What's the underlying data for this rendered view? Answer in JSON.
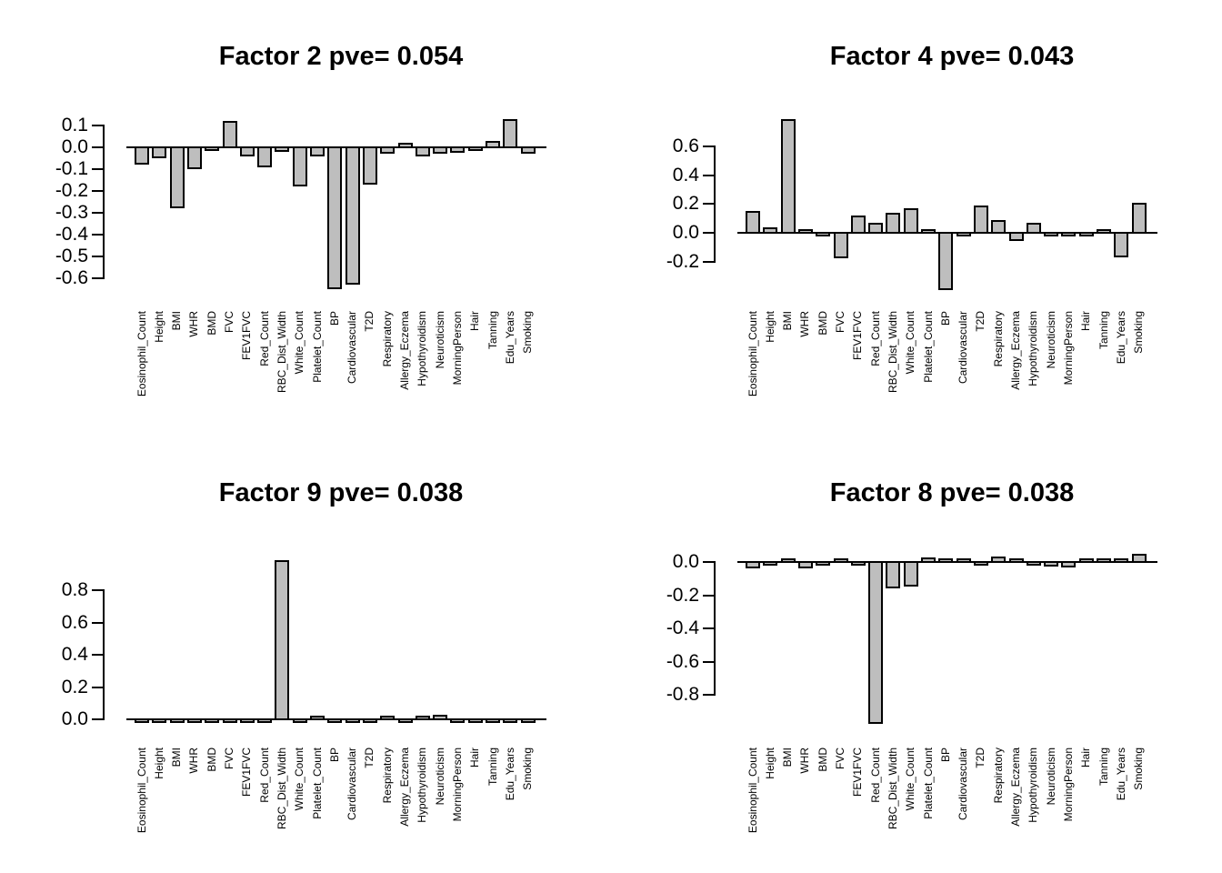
{
  "figure": {
    "background": "#ffffff",
    "bar_fill": "#bebebe",
    "bar_border": "#000000",
    "text_color": "#000000"
  },
  "chart_data": [
    {
      "type": "bar",
      "position": "top-left",
      "title": "Factor 2 pve= 0.054",
      "factor": "Factor 2",
      "pve": 0.054,
      "categories": [
        "Eosinophil_Count",
        "Height",
        "BMI",
        "WHR",
        "BMD",
        "FVC",
        "FEV1FVC",
        "Red_Count",
        "RBC_Dist_Width",
        "White_Count",
        "Platelet_Count",
        "BP",
        "Cardiovascular",
        "T2D",
        "Respiratory",
        "Allergy_Eczema",
        "Hypothyroidism",
        "Neuroticism",
        "MorningPerson",
        "Hair",
        "Tanning",
        "Edu_Years",
        "Smoking"
      ],
      "values": [
        -0.08,
        -0.05,
        -0.28,
        -0.1,
        -0.005,
        0.12,
        -0.04,
        -0.09,
        -0.02,
        -0.18,
        -0.04,
        -0.65,
        -0.63,
        -0.17,
        -0.03,
        0.02,
        -0.04,
        -0.03,
        -0.025,
        -0.005,
        0.03,
        0.13,
        -0.03
      ],
      "ytick_values": [
        0.1,
        0.0,
        -0.1,
        -0.2,
        -0.3,
        -0.4,
        -0.5,
        -0.6
      ],
      "ytick_labels": [
        "0.1",
        "0.0",
        "-0.1",
        "-0.2",
        "-0.3",
        "-0.4",
        "-0.5",
        "-0.6"
      ],
      "ylim": [
        -0.68,
        0.15
      ],
      "xlabel": "",
      "ylabel": "",
      "grid": false,
      "legend": "none"
    },
    {
      "type": "bar",
      "position": "top-right",
      "title": "Factor 4 pve= 0.043",
      "factor": "Factor 4",
      "pve": 0.043,
      "categories": [
        "Eosinophil_Count",
        "Height",
        "BMI",
        "WHR",
        "BMD",
        "FVC",
        "FEV1FVC",
        "Red_Count",
        "RBC_Dist_Width",
        "White_Count",
        "Platelet_Count",
        "BP",
        "Cardiovascular",
        "T2D",
        "Respiratory",
        "Allergy_Eczema",
        "Hypothyroidism",
        "Neuroticism",
        "MorningPerson",
        "Hair",
        "Tanning",
        "Edu_Years",
        "Smoking"
      ],
      "values": [
        0.15,
        0.04,
        0.79,
        0.02,
        -0.01,
        -0.18,
        0.12,
        0.07,
        0.14,
        0.17,
        0.02,
        -0.4,
        -0.01,
        0.19,
        0.09,
        -0.06,
        0.07,
        -0.01,
        -0.01,
        -0.01,
        0.02,
        -0.17,
        0.21
      ],
      "ytick_values": [
        0.6,
        0.4,
        0.2,
        0.0,
        -0.2
      ],
      "ytick_labels": [
        "0.6",
        "0.4",
        "0.2",
        "0.0",
        "-0.2"
      ],
      "ylim": [
        -0.44,
        0.82
      ],
      "xlabel": "",
      "ylabel": "",
      "grid": false,
      "legend": "none"
    },
    {
      "type": "bar",
      "position": "bottom-left",
      "title": "Factor 9 pve= 0.038",
      "factor": "Factor 9",
      "pve": 0.038,
      "categories": [
        "Eosinophil_Count",
        "Height",
        "BMI",
        "WHR",
        "BMD",
        "FVC",
        "FEV1FVC",
        "Red_Count",
        "RBC_Dist_Width",
        "White_Count",
        "Platelet_Count",
        "BP",
        "Cardiovascular",
        "T2D",
        "Respiratory",
        "Allergy_Eczema",
        "Hypothyroidism",
        "Neuroticism",
        "MorningPerson",
        "Hair",
        "Tanning",
        "Edu_Years",
        "Smoking"
      ],
      "values": [
        -0.01,
        -0.005,
        -0.015,
        -0.02,
        -0.025,
        -0.005,
        -0.005,
        -0.015,
        0.99,
        -0.015,
        0.025,
        -0.005,
        -0.005,
        -0.02,
        0.005,
        -0.01,
        0.015,
        0.03,
        -0.015,
        -0.005,
        -0.01,
        -0.005,
        -0.005
      ],
      "ytick_values": [
        0.8,
        0.6,
        0.4,
        0.2,
        0.0
      ],
      "ytick_labels": [
        "0.8",
        "0.6",
        "0.4",
        "0.2",
        "0.0"
      ],
      "ylim": [
        -0.05,
        1.0
      ],
      "xlabel": "",
      "ylabel": "",
      "grid": false,
      "legend": "none"
    },
    {
      "type": "bar",
      "position": "bottom-right",
      "title": "Factor 8 pve= 0.038",
      "factor": "Factor 8",
      "pve": 0.038,
      "categories": [
        "Eosinophil_Count",
        "Height",
        "BMI",
        "WHR",
        "BMD",
        "FVC",
        "FEV1FVC",
        "Red_Count",
        "RBC_Dist_Width",
        "White_Count",
        "Platelet_Count",
        "BP",
        "Cardiovascular",
        "T2D",
        "Respiratory",
        "Allergy_Eczema",
        "Hypothyroidism",
        "Neuroticism",
        "MorningPerson",
        "Hair",
        "Tanning",
        "Edu_Years",
        "Smoking"
      ],
      "values": [
        -0.04,
        -0.02,
        0.02,
        -0.04,
        -0.005,
        0.02,
        -0.005,
        -0.97,
        -0.16,
        -0.15,
        0.03,
        0.015,
        0.015,
        -0.005,
        0.035,
        0.015,
        -0.005,
        -0.03,
        -0.035,
        0.02,
        0.02,
        0.01,
        0.05
      ],
      "ytick_values": [
        0.0,
        -0.2,
        -0.4,
        -0.6,
        -0.8
      ],
      "ytick_labels": [
        "0.0",
        "-0.2",
        "-0.4",
        "-0.6",
        "-0.8"
      ],
      "ylim": [
        -1.0,
        0.08
      ],
      "xlabel": "",
      "ylabel": "",
      "grid": false,
      "legend": "none"
    }
  ]
}
